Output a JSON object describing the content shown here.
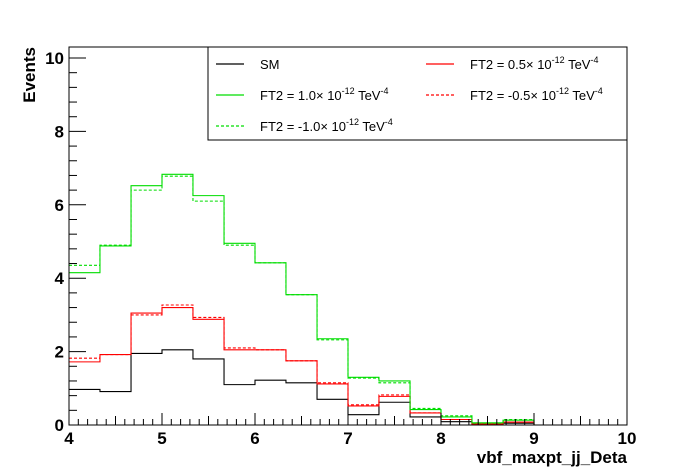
{
  "chart_data": {
    "type": "line",
    "title": "",
    "xlabel": "vbf_maxpt_jj_Deta",
    "ylabel": "Events",
    "xlim": [
      4,
      10
    ],
    "ylim": [
      0,
      10.3
    ],
    "grid": false,
    "legend_position": "top-right",
    "x_ticks": [
      "4",
      "5",
      "6",
      "7",
      "8",
      "9",
      "10"
    ],
    "y_ticks": [
      "0",
      "2",
      "4",
      "6",
      "8",
      "10"
    ],
    "bin_edges": [
      4.0,
      4.333,
      4.667,
      5.0,
      5.333,
      5.667,
      6.0,
      6.333,
      6.667,
      7.0,
      7.333,
      7.667,
      8.0,
      8.333,
      8.667,
      9.0,
      9.333,
      9.667,
      10.0
    ],
    "legend": [
      {
        "key": "sm",
        "prefix": "SM",
        "exp": "",
        "suffix": ""
      },
      {
        "key": "ft2_p05",
        "prefix": "FT2 = 0.5× 10",
        "exp": "-12",
        "suffix": " TeV",
        "unit_exp": "-4"
      },
      {
        "key": "ft2_p10",
        "prefix": "FT2 = 1.0× 10",
        "exp": "-12",
        "suffix": " TeV",
        "unit_exp": "-4"
      },
      {
        "key": "ft2_m05",
        "prefix": "FT2 = -0.5× 10",
        "exp": "-12",
        "suffix": " TeV",
        "unit_exp": "-4"
      },
      {
        "key": "ft2_m10",
        "prefix": "FT2 = -1.0× 10",
        "exp": "-12",
        "suffix": " TeV",
        "unit_exp": "-4"
      }
    ],
    "series": [
      {
        "key": "sm",
        "name": "SM",
        "color": "#000000",
        "dashed": false,
        "values": [
          0.97,
          0.91,
          1.95,
          2.05,
          1.8,
          1.1,
          1.22,
          1.15,
          0.7,
          0.28,
          0.62,
          0.22,
          0.09,
          0.03,
          0.05,
          0.0,
          0.0,
          0.0
        ]
      },
      {
        "key": "ft2_p05",
        "name": "FT2 = 0.5× 10-12 TeV-4",
        "color": "#ff0000",
        "dashed": false,
        "values": [
          1.72,
          1.92,
          3.05,
          3.2,
          2.88,
          2.05,
          2.05,
          1.75,
          1.12,
          0.52,
          0.78,
          0.33,
          0.15,
          0.03,
          0.08,
          0.0,
          0.0,
          0.0
        ]
      },
      {
        "key": "ft2_p10",
        "name": "FT2 = 1.0× 10-12 TeV-4",
        "color": "#00dd00",
        "dashed": false,
        "values": [
          4.15,
          4.88,
          6.52,
          6.83,
          6.25,
          4.95,
          4.42,
          3.55,
          2.35,
          1.3,
          1.2,
          0.42,
          0.22,
          0.06,
          0.13,
          0.0,
          0.0,
          0.0
        ]
      },
      {
        "key": "ft2_m05",
        "name": "FT2 = -0.5× 10-12 TeV-4",
        "color": "#ff0000",
        "dashed": true,
        "values": [
          1.82,
          1.92,
          3.0,
          3.27,
          2.93,
          2.1,
          2.05,
          1.75,
          1.15,
          0.55,
          0.82,
          0.33,
          0.15,
          0.03,
          0.08,
          0.0,
          0.0,
          0.0
        ]
      },
      {
        "key": "ft2_m10",
        "name": "FT2 = -1.0× 10-12 TeV-4",
        "color": "#00dd00",
        "dashed": true,
        "values": [
          4.35,
          4.9,
          6.4,
          6.78,
          6.1,
          4.9,
          4.42,
          3.55,
          2.32,
          1.28,
          1.15,
          0.45,
          0.25,
          0.05,
          0.15,
          0.0,
          0.0,
          0.0
        ]
      }
    ]
  }
}
